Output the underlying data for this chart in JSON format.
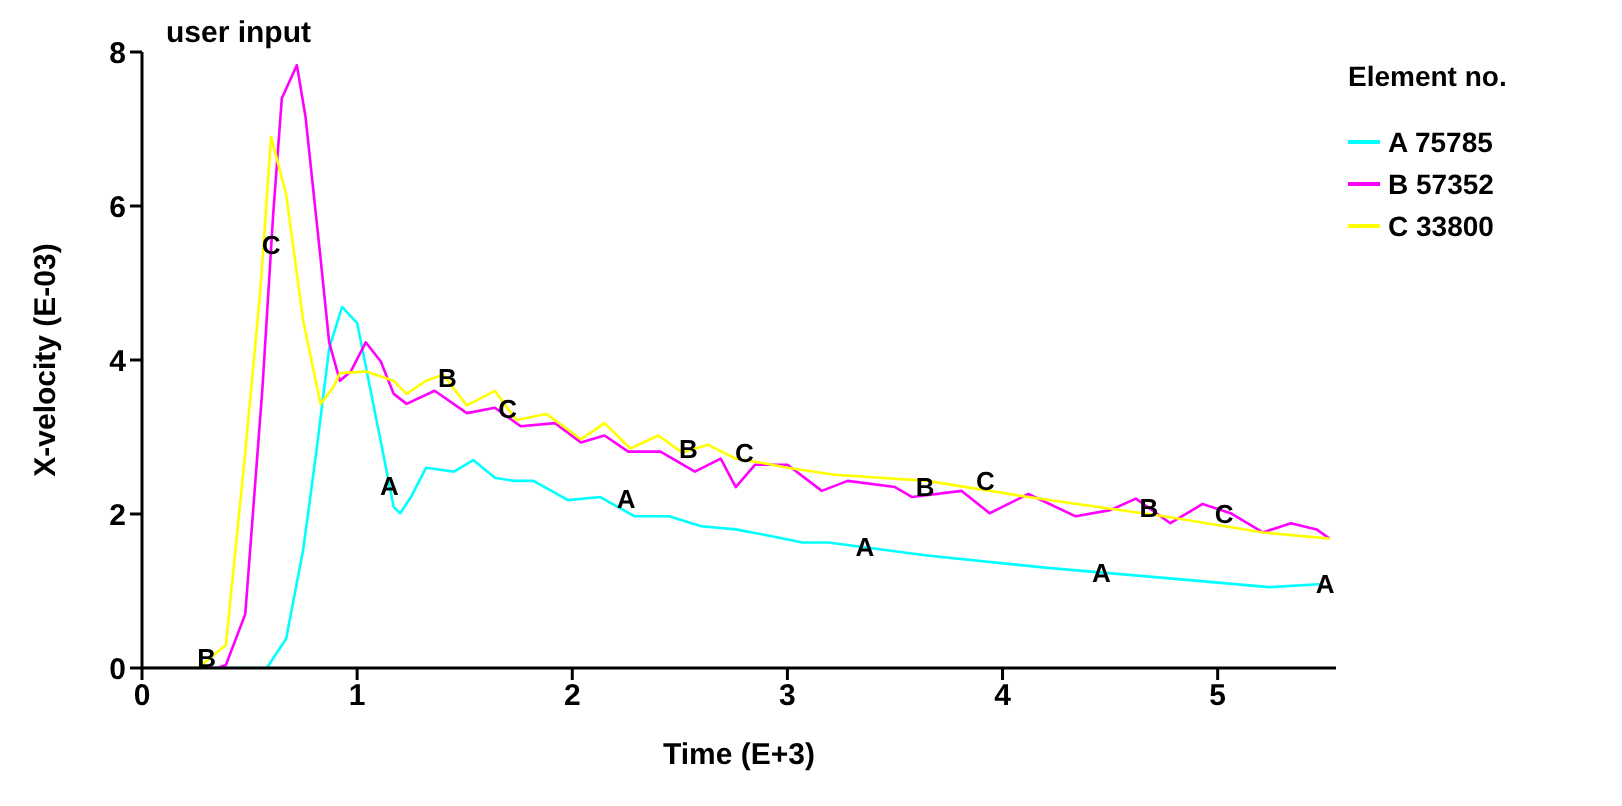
{
  "chart_data": {
    "type": "line",
    "title": "user input",
    "xlabel": "Time (E+3)",
    "ylabel": "X-velocity (E-03)",
    "legend_title": "Element no.",
    "legend": "top right",
    "grid": false,
    "marker": "none",
    "line_style": "solid",
    "xlim": [
      0,
      5.55
    ],
    "xticks": [
      0,
      1,
      2,
      3,
      4,
      5
    ],
    "ylim": [
      0,
      8
    ],
    "yticks": [
      0,
      2,
      4,
      6,
      8
    ],
    "series": [
      {
        "name": "A 75785",
        "color": "#00ffff",
        "x": [
          0,
          0.58,
          0.67,
          0.75,
          0.81,
          0.87,
          0.93,
          1.0,
          1.06,
          1.12,
          1.17,
          1.2,
          1.25,
          1.32,
          1.45,
          1.54,
          1.64,
          1.73,
          1.82,
          1.98,
          2.13,
          2.29,
          2.45,
          2.6,
          2.76,
          2.91,
          3.07,
          3.19,
          3.65,
          4.21,
          4.75,
          5.24,
          5.49
        ],
        "values": [
          0,
          0,
          0.38,
          1.55,
          2.8,
          4.15,
          4.69,
          4.48,
          3.64,
          2.8,
          2.09,
          2.01,
          2.22,
          2.6,
          2.55,
          2.7,
          2.47,
          2.43,
          2.43,
          2.18,
          2.22,
          1.97,
          1.97,
          1.84,
          1.8,
          1.72,
          1.63,
          1.63,
          1.46,
          1.3,
          1.17,
          1.05,
          1.09
        ]
      },
      {
        "name": "B 57352",
        "color": "#ff00ff",
        "x": [
          0,
          0.35,
          0.39,
          0.48,
          0.56,
          0.61,
          0.65,
          0.72,
          0.76,
          0.83,
          0.87,
          0.92,
          0.97,
          1.04,
          1.11,
          1.17,
          1.23,
          1.36,
          1.51,
          1.64,
          1.76,
          1.92,
          2.04,
          2.15,
          2.26,
          2.41,
          2.57,
          2.69,
          2.76,
          2.85,
          3.0,
          3.16,
          3.28,
          3.5,
          3.58,
          3.81,
          3.94,
          4.12,
          4.34,
          4.5,
          4.62,
          4.78,
          4.93,
          5.06,
          5.21,
          5.34,
          5.46,
          5.52
        ],
        "values": [
          0,
          0,
          0.04,
          0.7,
          3.64,
          5.9,
          7.4,
          7.83,
          7.16,
          5.32,
          4.23,
          3.73,
          3.85,
          4.23,
          3.98,
          3.56,
          3.43,
          3.6,
          3.31,
          3.38,
          3.14,
          3.18,
          2.93,
          3.02,
          2.81,
          2.81,
          2.55,
          2.72,
          2.35,
          2.64,
          2.64,
          2.3,
          2.43,
          2.35,
          2.22,
          2.3,
          2.01,
          2.26,
          1.97,
          2.05,
          2.2,
          1.88,
          2.13,
          2.01,
          1.76,
          1.88,
          1.8,
          1.68
        ]
      },
      {
        "name": "C 33800",
        "color": "#ffff00",
        "x": [
          0,
          0.26,
          0.39,
          0.48,
          0.55,
          0.6,
          0.67,
          0.75,
          0.83,
          0.89,
          0.92,
          1.04,
          1.17,
          1.23,
          1.32,
          1.4,
          1.51,
          1.64,
          1.74,
          1.88,
          2.04,
          2.15,
          2.27,
          2.4,
          2.51,
          2.63,
          2.76,
          2.91,
          3.0,
          3.22,
          3.65,
          4.12,
          4.75,
          5.21,
          5.52
        ],
        "values": [
          0,
          0,
          0.3,
          2.8,
          4.9,
          6.9,
          6.15,
          4.5,
          3.43,
          3.65,
          3.83,
          3.85,
          3.73,
          3.56,
          3.73,
          3.81,
          3.41,
          3.6,
          3.22,
          3.3,
          2.97,
          3.18,
          2.85,
          3.02,
          2.8,
          2.9,
          2.72,
          2.65,
          2.6,
          2.51,
          2.43,
          2.22,
          1.97,
          1.76,
          1.68
        ]
      }
    ],
    "annotations": [
      {
        "text": "B",
        "x": 0.3,
        "y": 0.13
      },
      {
        "text": "C",
        "x": 0.6,
        "y": 5.5
      },
      {
        "text": "A",
        "x": 1.15,
        "y": 2.37
      },
      {
        "text": "B",
        "x": 1.42,
        "y": 3.77
      },
      {
        "text": "C",
        "x": 1.7,
        "y": 3.37
      },
      {
        "text": "A",
        "x": 2.25,
        "y": 2.2
      },
      {
        "text": "B",
        "x": 2.54,
        "y": 2.85
      },
      {
        "text": "C",
        "x": 2.8,
        "y": 2.8
      },
      {
        "text": "A",
        "x": 3.36,
        "y": 1.57
      },
      {
        "text": "B",
        "x": 3.64,
        "y": 2.36
      },
      {
        "text": "C",
        "x": 3.92,
        "y": 2.43
      },
      {
        "text": "A",
        "x": 4.46,
        "y": 1.24
      },
      {
        "text": "B",
        "x": 4.68,
        "y": 2.08
      },
      {
        "text": "C",
        "x": 5.03,
        "y": 2.0
      },
      {
        "text": "A",
        "x": 5.5,
        "y": 1.09
      }
    ]
  }
}
